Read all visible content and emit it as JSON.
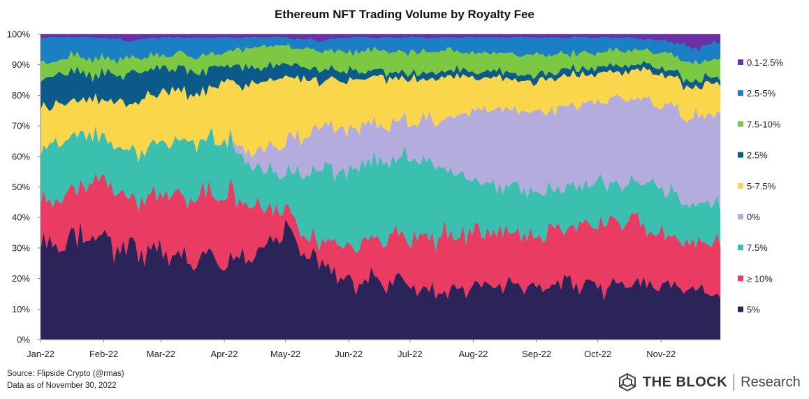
{
  "chart_data": {
    "type": "area",
    "stacked": true,
    "normalized": true,
    "title": "Ethereum NFT Trading Volume by Royalty Fee",
    "xlabel": "",
    "ylabel": "",
    "ylim": [
      0,
      100
    ],
    "y_ticks": [
      "0%",
      "10%",
      "20%",
      "30%",
      "40%",
      "50%",
      "60%",
      "70%",
      "80%",
      "90%",
      "100%"
    ],
    "x_ticks": [
      "Jan-22",
      "Feb-22",
      "Mar-22",
      "Apr-22",
      "May-22",
      "Jun-22",
      "Jul-22",
      "Aug-22",
      "Sep-22",
      "Oct-22",
      "Nov-22"
    ],
    "x_range_days": [
      0,
      333
    ],
    "x_tick_days": [
      0,
      31,
      59,
      90,
      120,
      151,
      181,
      212,
      243,
      273,
      304
    ],
    "sample_days": [
      0,
      15,
      31,
      45,
      59,
      75,
      90,
      105,
      120,
      135,
      151,
      166,
      181,
      196,
      212,
      227,
      243,
      258,
      273,
      288,
      304,
      319,
      333
    ],
    "series": [
      {
        "name": "5%",
        "color": "#2a2458",
        "values": [
          30,
          33,
          34,
          30,
          28,
          27,
          27,
          29,
          37,
          26,
          19,
          20,
          18,
          15,
          17,
          18,
          17,
          19,
          17,
          19,
          18,
          16,
          15
        ]
      },
      {
        "name": "≥ 10%",
        "color": "#ea3b62",
        "values": [
          13,
          16,
          19,
          16,
          19,
          20,
          22,
          16,
          6,
          6,
          12,
          13,
          15,
          19,
          19,
          18,
          17,
          18,
          21,
          20,
          16,
          16,
          16
        ]
      },
      {
        "name": "7.5%",
        "color": "#3bbfae",
        "values": [
          18,
          18,
          14,
          16,
          17,
          18,
          17,
          12,
          11,
          24,
          24,
          26,
          26,
          24,
          17,
          15,
          14,
          13,
          13,
          12,
          16,
          12,
          13
        ]
      },
      {
        "name": "0%",
        "color": "#b3acdc",
        "values": [
          0,
          0,
          0,
          0,
          0,
          0,
          0,
          5,
          10,
          14,
          14,
          12,
          12,
          14,
          22,
          25,
          26,
          27,
          27,
          28,
          27,
          29,
          30
        ]
      },
      {
        "name": "5-7.5%",
        "color": "#fad64b",
        "values": [
          14,
          12,
          12,
          16,
          17,
          16,
          18,
          22,
          22,
          16,
          16,
          15,
          14,
          14,
          11,
          10,
          10,
          10,
          9,
          9,
          10,
          10,
          10
        ]
      },
      {
        "name": "2.5%",
        "color": "#0b5a8a",
        "values": [
          10,
          9,
          8,
          9,
          8,
          7,
          6,
          5,
          4,
          4,
          3,
          2,
          2,
          2,
          2,
          2,
          2,
          2,
          2,
          2,
          2,
          2,
          2
        ]
      },
      {
        "name": "7.5-10%",
        "color": "#7cc843",
        "values": [
          5,
          5,
          5,
          5,
          4,
          5,
          4,
          7,
          6,
          6,
          6,
          7,
          7,
          7,
          6,
          6,
          7,
          5,
          5,
          5,
          5,
          6,
          6
        ]
      },
      {
        "name": "2.5-5%",
        "color": "#1b7fc4",
        "values": [
          9,
          6,
          7,
          6,
          6,
          6,
          5,
          3,
          3,
          3,
          5,
          4,
          5,
          4,
          5,
          5,
          6,
          5,
          5,
          4,
          4,
          5,
          5
        ]
      },
      {
        "name": "0.1-2.5%",
        "color": "#6b2fa6",
        "values": [
          1,
          1,
          1,
          2,
          1,
          1,
          1,
          1,
          1,
          2,
          1,
          1,
          1,
          1,
          1,
          1,
          1,
          1,
          1,
          1,
          2,
          4,
          3
        ]
      }
    ],
    "legend": {
      "position": "right",
      "order": [
        "0.1-2.5%",
        "2.5-5%",
        "7.5-10%",
        "2.5%",
        "5-7.5%",
        "0%",
        "7.5%",
        "≥ 10%",
        "5%"
      ]
    }
  },
  "footer": {
    "source": "Source:  Flipside Crypto (@rmas)",
    "asof": "Data as of November 30, 2022"
  },
  "brand": {
    "name": "THE BLOCK",
    "sub": "Research"
  }
}
